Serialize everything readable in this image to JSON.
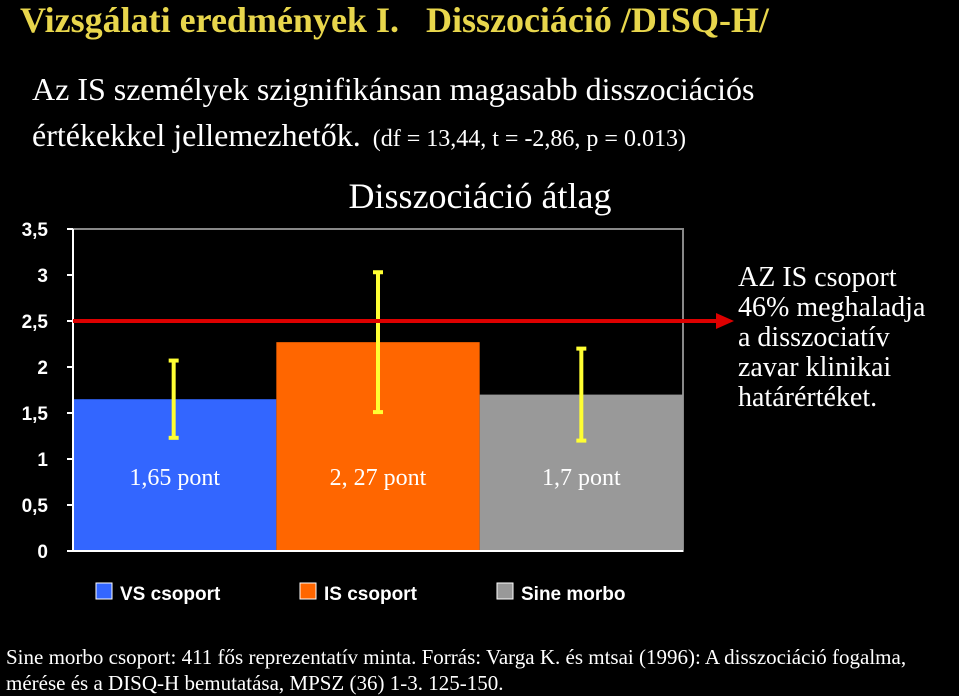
{
  "slide": {
    "title": "Vizsgálati eredmények I.   Disszociáció /DISQ-H/",
    "subtitle_lines": [
      "Az IS személyek szignifikánsan magasabb disszociációs",
      "értékekkel jellemezhetők."
    ],
    "stats": "(df = 13,44, t = -2,86, p = 0.013)",
    "footnote_lines": [
      "Sine morbo csoport: 411 fős reprezentatív minta. Forrás: Varga K. és mtsai (1996): A disszociáció fogalma,",
      "mérése és a DISQ-H bemutatása, MPSZ (36) 1-3. 125-150."
    ]
  },
  "chart_data": {
    "type": "bar",
    "title": "Disszociáció átlag",
    "series": [
      {
        "name": "VS csoport",
        "color": "#3366ff",
        "values": [
          1.65
        ],
        "errors": [
          0.42
        ],
        "value_labels": [
          "1,65 pont"
        ]
      },
      {
        "name": "IS csoport",
        "color": "#ff6600",
        "values": [
          2.27
        ],
        "errors": [
          0.76
        ],
        "value_labels": [
          "2, 27 pont"
        ]
      },
      {
        "name": "Sine morbo",
        "color": "#999999",
        "values": [
          1.7
        ],
        "errors": [
          0.5
        ],
        "value_labels": [
          "1,7 pont"
        ]
      }
    ],
    "error_color": "#ffff33",
    "ylim": [
      0,
      3.5
    ],
    "yticks": [
      0,
      {
        "value": 0.5,
        "label": "0,5"
      },
      1,
      {
        "value": 1.5,
        "label": "1,5"
      },
      2,
      {
        "value": 2.5,
        "label": "2,5"
      },
      3,
      {
        "value": 3.5,
        "label": "3,5"
      }
    ],
    "threshold": 2.5,
    "threshold_color": "#dd0000",
    "annotation_lines": [
      "AZ IS csoport",
      "46% meghaladja",
      "a disszociatív",
      "zavar klinikai",
      "határértéket."
    ],
    "legend": "bottom"
  }
}
